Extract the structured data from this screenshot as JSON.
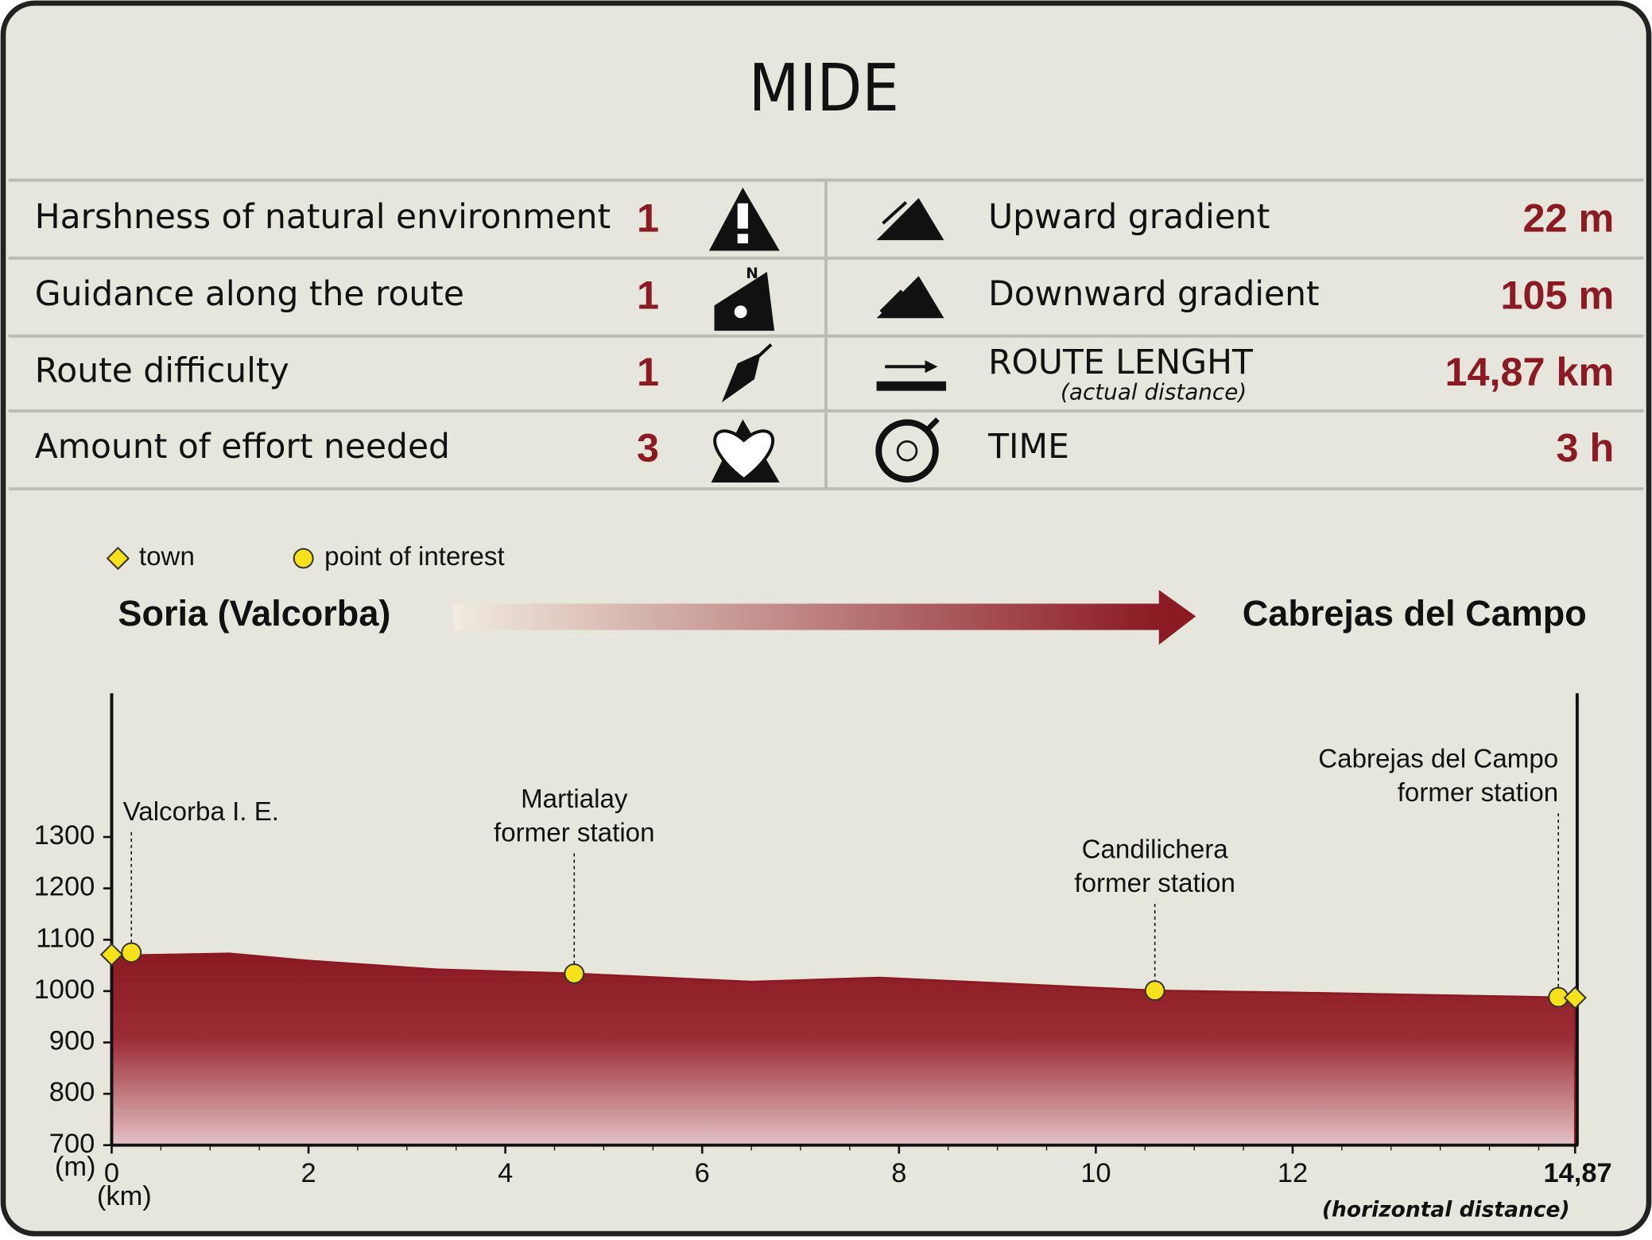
{
  "mide": {
    "title": "MIDE",
    "rows": [
      {
        "label": "Harshness of natural environment",
        "value": "1",
        "right_label": "Upward gradient",
        "right_value": "22 m"
      },
      {
        "label": "Guidance along the route",
        "value": "1",
        "right_label": "Downward gradient",
        "right_value": "105 m"
      },
      {
        "label": "Route difficulty",
        "value": "1",
        "right_label": "ROUTE LENGHT",
        "right_sublabel": "(actual distance)",
        "right_value": "14,87 km"
      },
      {
        "label": "Amount of effort needed",
        "value": "3",
        "right_label": "TIME",
        "right_value": "3 h"
      }
    ]
  },
  "route": {
    "start": "Soria (Valcorba)",
    "end": "Cabrejas del Campo"
  },
  "chart_data": {
    "type": "area",
    "color": "#8b1a22",
    "x": [
      0,
      1.2,
      2,
      3.3,
      4.7,
      6.5,
      7.8,
      10.6,
      12,
      14.87
    ],
    "values": [
      1069,
      1073,
      1059,
      1042,
      1034,
      1018,
      1026,
      1001,
      997,
      987
    ],
    "xlim": [
      0,
      14.87
    ],
    "ylim": [
      700,
      1580
    ],
    "xticks": [
      0,
      2,
      4,
      6,
      8,
      10,
      12,
      {
        "value": 14.87,
        "label": "14,87"
      }
    ],
    "yticks": [
      700,
      800,
      900,
      1000,
      1100,
      1200,
      1300
    ],
    "ylabel": "(m)",
    "xlabel": "(km)",
    "xnote": "(horizontal distance)",
    "legend": [
      {
        "kind": "town",
        "label": "town"
      },
      {
        "kind": "point of interest",
        "label": "point of interest"
      }
    ],
    "points": [
      {
        "x": 0,
        "y": 1071,
        "kind": "town"
      },
      {
        "x": 0.2,
        "y": 1075,
        "kind": "point of interest",
        "label": [
          "Valcorba I. E."
        ]
      },
      {
        "x": 4.7,
        "y": 1034,
        "kind": "point of interest",
        "label": [
          "Martialay",
          "former station"
        ]
      },
      {
        "x": 10.6,
        "y": 1001,
        "kind": "point of interest",
        "label": [
          "Candilichera",
          "former station"
        ]
      },
      {
        "x": 14.7,
        "y": 988,
        "kind": "point of interest",
        "label": [
          "Cabrejas del Campo",
          "former station"
        ]
      },
      {
        "x": 14.87,
        "y": 987,
        "kind": "town"
      }
    ]
  }
}
